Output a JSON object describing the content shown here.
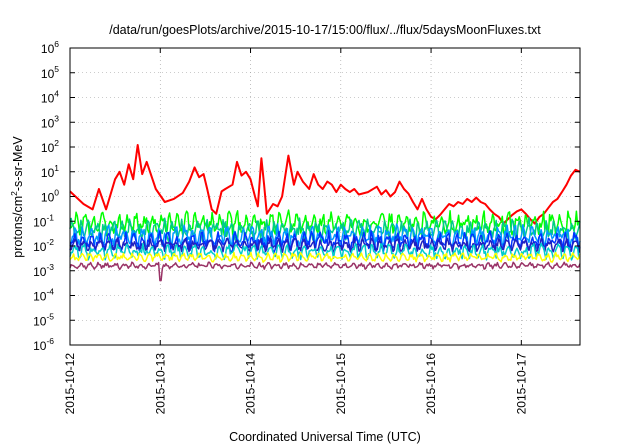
{
  "chart_data": {
    "type": "line",
    "title": "/data/run/goesPlots/archive/2015-10-17/15:00/flux/../flux/5daysMoonFluxes.txt",
    "xlabel": "Coordinated Universal Time (UTC)",
    "ylabel": {
      "base": "protons/cm",
      "sup": "2",
      "rest": "-s-sr-MeV"
    },
    "yscale": "log",
    "ylim_exp": [
      -6,
      6
    ],
    "ytick_base": "10",
    "ytick_exps": [
      "-6",
      "-5",
      "-4",
      "-3",
      "-2",
      "-1",
      "0",
      "1",
      "2",
      "3",
      "4",
      "5",
      "6"
    ],
    "xlim_days": [
      0,
      5.65
    ],
    "xtick_labels": [
      "2015-10-12",
      "2015-10-13",
      "2015-10-14",
      "2015-10-15",
      "2015-10-16",
      "2015-10-17"
    ],
    "grid": true,
    "series": [
      {
        "color": "#ff0000",
        "kind": "key",
        "points": [
          [
            0,
            1.6
          ],
          [
            0.15,
            0.5
          ],
          [
            0.25,
            0.3
          ],
          [
            0.32,
            2
          ],
          [
            0.4,
            0.3
          ],
          [
            0.5,
            5
          ],
          [
            0.55,
            10
          ],
          [
            0.6,
            3
          ],
          [
            0.65,
            20
          ],
          [
            0.7,
            5
          ],
          [
            0.75,
            120
          ],
          [
            0.8,
            8
          ],
          [
            0.85,
            25
          ],
          [
            0.95,
            2
          ],
          [
            1.05,
            0.6
          ],
          [
            1.15,
            0.8
          ],
          [
            1.25,
            1.4
          ],
          [
            1.32,
            4
          ],
          [
            1.38,
            15
          ],
          [
            1.43,
            6
          ],
          [
            1.48,
            8
          ],
          [
            1.52,
            2
          ],
          [
            1.57,
            0.3
          ],
          [
            1.62,
            0.2
          ],
          [
            1.68,
            1.6
          ],
          [
            1.72,
            2
          ],
          [
            1.8,
            3
          ],
          [
            1.85,
            25
          ],
          [
            1.9,
            7
          ],
          [
            1.95,
            10
          ],
          [
            2.0,
            5
          ],
          [
            2.05,
            1
          ],
          [
            2.08,
            0.4
          ],
          [
            2.12,
            35
          ],
          [
            2.15,
            3
          ],
          [
            2.18,
            0.2
          ],
          [
            2.25,
            0.5
          ],
          [
            2.3,
            0.4
          ],
          [
            2.35,
            1
          ],
          [
            2.42,
            45
          ],
          [
            2.48,
            3
          ],
          [
            2.52,
            10
          ],
          [
            2.58,
            4
          ],
          [
            2.65,
            2
          ],
          [
            2.7,
            8
          ],
          [
            2.75,
            3
          ],
          [
            2.8,
            2
          ],
          [
            2.85,
            4
          ],
          [
            2.9,
            3
          ],
          [
            2.95,
            1.5
          ],
          [
            3.0,
            3
          ],
          [
            3.05,
            2
          ],
          [
            3.1,
            1.5
          ],
          [
            3.15,
            2
          ],
          [
            3.2,
            1.2
          ],
          [
            3.3,
            1.5
          ],
          [
            3.4,
            2.5
          ],
          [
            3.45,
            1.2
          ],
          [
            3.5,
            1.8
          ],
          [
            3.55,
            1
          ],
          [
            3.6,
            1.5
          ],
          [
            3.65,
            4
          ],
          [
            3.7,
            2
          ],
          [
            3.75,
            1.3
          ],
          [
            3.8,
            0.6
          ],
          [
            3.85,
            0.3
          ],
          [
            3.9,
            0.8
          ],
          [
            3.95,
            0.3
          ],
          [
            4.0,
            0.15
          ],
          [
            4.05,
            0.12
          ],
          [
            4.1,
            0.18
          ],
          [
            4.15,
            0.3
          ],
          [
            4.2,
            0.5
          ],
          [
            4.25,
            0.4
          ],
          [
            4.3,
            0.6
          ],
          [
            4.35,
            0.5
          ],
          [
            4.4,
            0.8
          ],
          [
            4.45,
            0.6
          ],
          [
            4.5,
            0.9
          ],
          [
            4.55,
            0.6
          ],
          [
            4.6,
            0.5
          ],
          [
            4.65,
            0.3
          ],
          [
            4.7,
            0.2
          ],
          [
            4.75,
            0.15
          ],
          [
            4.8,
            0.08
          ],
          [
            4.85,
            0.12
          ],
          [
            4.9,
            0.18
          ],
          [
            4.95,
            0.25
          ],
          [
            5.0,
            0.3
          ],
          [
            5.05,
            0.2
          ],
          [
            5.1,
            0.12
          ],
          [
            5.15,
            0.08
          ],
          [
            5.2,
            0.15
          ],
          [
            5.25,
            0.2
          ],
          [
            5.3,
            0.35
          ],
          [
            5.35,
            0.6
          ],
          [
            5.4,
            0.8
          ],
          [
            5.45,
            1.5
          ],
          [
            5.5,
            3
          ],
          [
            5.55,
            7
          ],
          [
            5.6,
            12
          ],
          [
            5.65,
            10
          ]
        ]
      },
      {
        "color": "#00ff00",
        "kind": "noisy",
        "base": 0.08,
        "amp": 0.55,
        "seed": 3
      },
      {
        "color": "#00cc88",
        "kind": "noisy",
        "base": 0.045,
        "amp": 0.5,
        "seed": 7
      },
      {
        "color": "#0099ff",
        "kind": "noisy",
        "base": 0.025,
        "amp": 0.5,
        "seed": 11
      },
      {
        "color": "#0033ff",
        "kind": "noisy",
        "base": 0.015,
        "amp": 0.45,
        "seed": 17
      },
      {
        "color": "#2020c0",
        "kind": "noisy",
        "base": 0.011,
        "amp": 0.3,
        "seed": 23
      },
      {
        "color": "#00cccc",
        "kind": "noisy",
        "base": 0.006,
        "amp": 0.35,
        "seed": 29
      },
      {
        "color": "#ffff00",
        "kind": "noisy",
        "base": 0.0035,
        "amp": 0.2,
        "seed": 31
      },
      {
        "color": "#993366",
        "kind": "noisy",
        "base": 0.0016,
        "amp": 0.15,
        "seed": 37
      }
    ]
  }
}
